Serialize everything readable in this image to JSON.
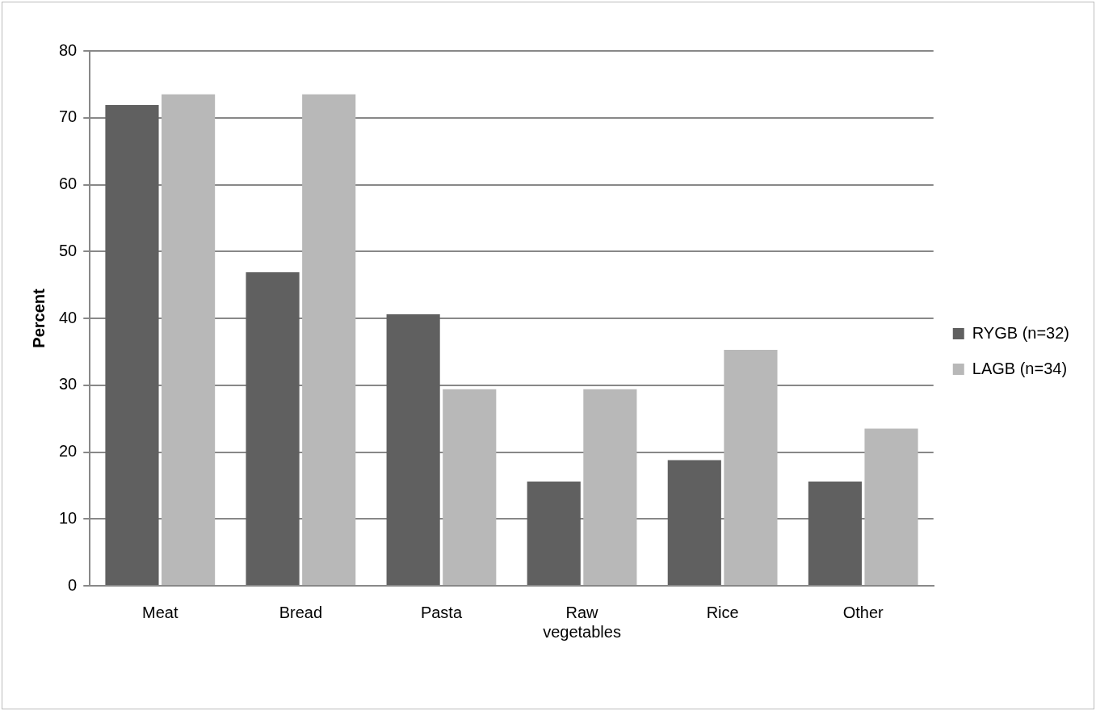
{
  "chart_data": {
    "type": "bar",
    "ylabel": "Percent",
    "categories": [
      "Meat",
      "Bread",
      "Pasta",
      "Raw vegetables",
      "Rice",
      "Other"
    ],
    "series": [
      {
        "name": "RYGB (n=32)",
        "color": "#606060",
        "values": [
          71.9,
          46.9,
          40.6,
          15.6,
          18.8,
          15.6
        ]
      },
      {
        "name": "LAGB (n=34)",
        "color": "#b8b8b8",
        "values": [
          73.5,
          73.5,
          29.4,
          29.4,
          35.3,
          23.5
        ]
      }
    ],
    "ylim": [
      0,
      80
    ],
    "yticks": [
      0,
      10,
      20,
      30,
      40,
      50,
      60,
      70,
      80
    ],
    "grid": "y",
    "legend": "right"
  }
}
